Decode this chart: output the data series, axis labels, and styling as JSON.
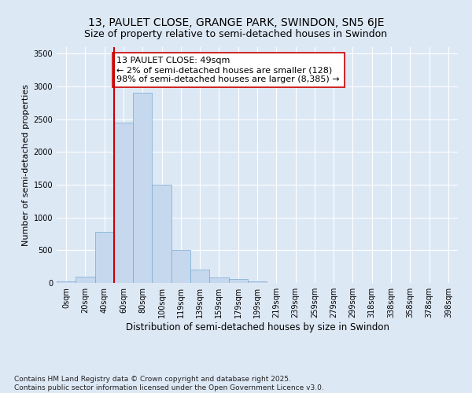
{
  "title": "13, PAULET CLOSE, GRANGE PARK, SWINDON, SN5 6JE",
  "subtitle": "Size of property relative to semi-detached houses in Swindon",
  "xlabel": "Distribution of semi-detached houses by size in Swindon",
  "ylabel": "Number of semi-detached properties",
  "categories": [
    "0sqm",
    "20sqm",
    "40sqm",
    "60sqm",
    "80sqm",
    "100sqm",
    "119sqm",
    "139sqm",
    "159sqm",
    "179sqm",
    "199sqm",
    "219sqm",
    "239sqm",
    "259sqm",
    "279sqm",
    "299sqm",
    "318sqm",
    "338sqm",
    "358sqm",
    "378sqm",
    "398sqm"
  ],
  "values": [
    20,
    100,
    780,
    2450,
    2900,
    1500,
    500,
    210,
    80,
    55,
    30,
    5,
    0,
    0,
    0,
    0,
    0,
    0,
    0,
    0,
    0
  ],
  "bar_color": "#c5d8ee",
  "bar_edge_color": "#7aaad0",
  "vline_color": "#cc0000",
  "vline_index": 2.5,
  "annotation_text": "13 PAULET CLOSE: 49sqm\n← 2% of semi-detached houses are smaller (128)\n98% of semi-detached houses are larger (8,385) →",
  "annotation_box_facecolor": "#ffffff",
  "annotation_box_edgecolor": "#cc0000",
  "ylim_max": 3600,
  "yticks": [
    0,
    500,
    1000,
    1500,
    2000,
    2500,
    3000,
    3500
  ],
  "footer": "Contains HM Land Registry data © Crown copyright and database right 2025.\nContains public sector information licensed under the Open Government Licence v3.0.",
  "bg_color": "#dde8f5",
  "grid_color": "#ffffff",
  "title_fontsize": 10,
  "subtitle_fontsize": 9,
  "tick_fontsize": 7,
  "ylabel_fontsize": 8,
  "xlabel_fontsize": 8.5,
  "footer_fontsize": 6.5,
  "ann_fontsize": 8
}
